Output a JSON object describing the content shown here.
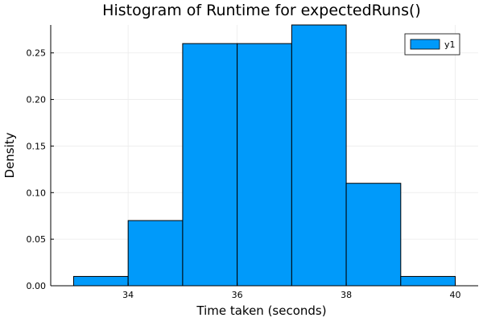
{
  "chart_data": {
    "type": "bar",
    "title": "Histogram of Runtime for expectedRuns()",
    "xlabel": "Time taken (seconds)",
    "ylabel": "Density",
    "bins": [
      {
        "x0": 33,
        "x1": 34,
        "density": 0.01
      },
      {
        "x0": 34,
        "x1": 35,
        "density": 0.07
      },
      {
        "x0": 35,
        "x1": 36,
        "density": 0.26
      },
      {
        "x0": 36,
        "x1": 37,
        "density": 0.26
      },
      {
        "x0": 37,
        "x1": 38,
        "density": 0.28
      },
      {
        "x0": 38,
        "x1": 39,
        "density": 0.11
      },
      {
        "x0": 39,
        "x1": 40,
        "density": 0.01
      }
    ],
    "series": [
      {
        "name": "y1"
      }
    ],
    "xlim": [
      32.58,
      40.42
    ],
    "ylim": [
      0,
      0.28
    ],
    "x_ticks": [
      34,
      36,
      38,
      40
    ],
    "x_tick_labels": [
      "34",
      "36",
      "38",
      "40"
    ],
    "y_ticks": [
      0,
      0.05,
      0.1,
      0.15,
      0.2,
      0.25
    ],
    "y_tick_labels": [
      "0.00",
      "0.05",
      "0.10",
      "0.15",
      "0.20",
      "0.25"
    ],
    "grid": true,
    "legend_position": "top-right",
    "bar_color": "#009AFA",
    "bar_edge_color": "#000000",
    "grid_color": "#ebebeb"
  }
}
